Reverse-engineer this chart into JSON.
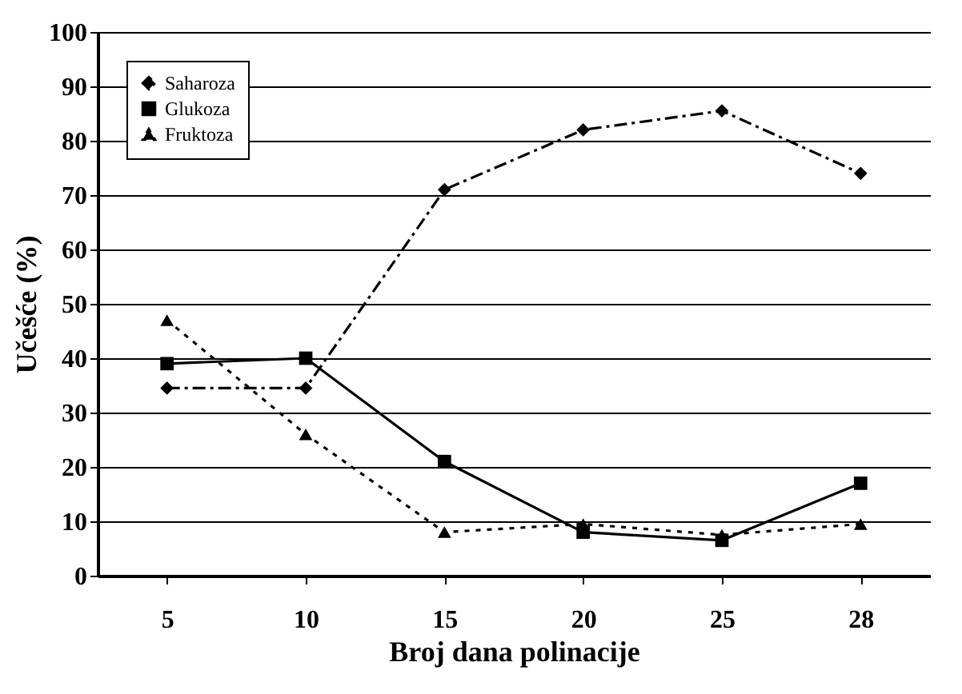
{
  "chart_data": {
    "type": "line",
    "xlabel": "Broj dana polinacije",
    "ylabel": "Učešće (%)",
    "categories": [
      "5",
      "10",
      "15",
      "20",
      "25",
      "28"
    ],
    "series": [
      {
        "name": "Saharoza",
        "color": "#000000",
        "line_style": "dashed",
        "marker": "diamond",
        "values": [
          34.5,
          34.5,
          71,
          82,
          85.5,
          74
        ]
      },
      {
        "name": "Glukoza",
        "color": "#000000",
        "line_style": "solid",
        "marker": "square",
        "values": [
          39,
          40,
          21,
          8,
          6.5,
          17
        ]
      },
      {
        "name": "Fruktoza",
        "color": "#000000",
        "line_style": "dotted",
        "marker": "triangle",
        "values": [
          47,
          26,
          8,
          9.5,
          7.5,
          9.5
        ]
      }
    ],
    "ylim": [
      0,
      100
    ],
    "yticks": [
      0,
      10,
      20,
      30,
      40,
      50,
      60,
      70,
      80,
      90,
      100
    ],
    "grid": "y",
    "legend": "top left"
  }
}
